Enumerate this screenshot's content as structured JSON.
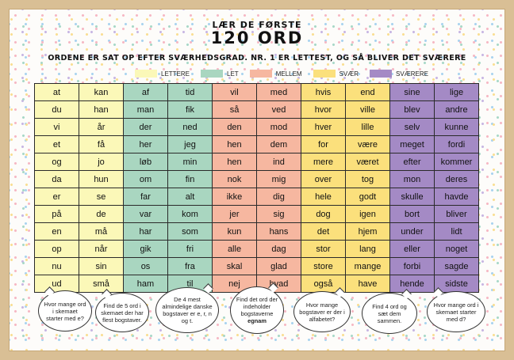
{
  "header": {
    "title_top": "LÆR DE FØRSTE",
    "title_main": "120 ORD",
    "subtitle": "ORDENE ER SAT OP EFTER SVÆRHEDSGRAD. NR. 1 ER LETTEST, OG SÅ BLIVER DET SVÆRERE"
  },
  "legend": [
    {
      "label": "LETTERE",
      "color": "#fbf8b8"
    },
    {
      "label": "LET",
      "color": "#a9d6c0"
    },
    {
      "label": "MELLEM",
      "color": "#f6b7a0"
    },
    {
      "label": "SVÆR",
      "color": "#fbe07c"
    },
    {
      "label": "SVÆRERE",
      "color": "#a48ac5"
    }
  ],
  "columns": [
    {
      "level": "LETTERE",
      "color": "#fbf8b8"
    },
    {
      "level": "LETTERE",
      "color": "#fbf8b8"
    },
    {
      "level": "LET",
      "color": "#a9d6c0"
    },
    {
      "level": "LET",
      "color": "#a9d6c0"
    },
    {
      "level": "MELLEM",
      "color": "#f6b7a0"
    },
    {
      "level": "MELLEM",
      "color": "#f6b7a0"
    },
    {
      "level": "SVÆR",
      "color": "#fbe07c"
    },
    {
      "level": "SVÆR",
      "color": "#fbe07c"
    },
    {
      "level": "SVÆRERE",
      "color": "#a48ac5"
    },
    {
      "level": "SVÆRERE",
      "color": "#a48ac5"
    }
  ],
  "rows": [
    [
      "at",
      "kan",
      "af",
      "tid",
      "vil",
      "med",
      "hvis",
      "end",
      "sine",
      "lige"
    ],
    [
      "du",
      "han",
      "man",
      "fik",
      "så",
      "ved",
      "hvor",
      "ville",
      "blev",
      "andre"
    ],
    [
      "vi",
      "år",
      "der",
      "ned",
      "den",
      "mod",
      "hver",
      "lille",
      "selv",
      "kunne"
    ],
    [
      "et",
      "få",
      "her",
      "jeg",
      "hen",
      "dem",
      "for",
      "være",
      "meget",
      "fordi"
    ],
    [
      "og",
      "jo",
      "løb",
      "min",
      "hen",
      "ind",
      "mere",
      "været",
      "efter",
      "kommer"
    ],
    [
      "da",
      "hun",
      "om",
      "fin",
      "nok",
      "mig",
      "over",
      "tog",
      "mon",
      "deres"
    ],
    [
      "er",
      "se",
      "far",
      "alt",
      "ikke",
      "dig",
      "hele",
      "godt",
      "skulle",
      "havde"
    ],
    [
      "på",
      "de",
      "var",
      "kom",
      "jer",
      "sig",
      "dog",
      "igen",
      "bort",
      "bliver"
    ],
    [
      "en",
      "må",
      "har",
      "som",
      "kun",
      "hans",
      "det",
      "hjem",
      "under",
      "lidt"
    ],
    [
      "op",
      "når",
      "gik",
      "fri",
      "alle",
      "dag",
      "stor",
      "lang",
      "eller",
      "noget"
    ],
    [
      "nu",
      "sin",
      "os",
      "fra",
      "skal",
      "glad",
      "store",
      "mange",
      "forbi",
      "sagde"
    ],
    [
      "ud",
      "små",
      "ham",
      "til",
      "nej",
      "hvad",
      "også",
      "have",
      "hende",
      "sidste"
    ]
  ],
  "bubbles": [
    {
      "text": "Hvor mange ord i skemaet starter med e?",
      "bold": ""
    },
    {
      "text": "Find de 5 ord i skemaet der har flest bogstaver.",
      "bold": ""
    },
    {
      "text": "De 4 mest almindelige danske bogstaver er e, r, n og t.",
      "bold": ""
    },
    {
      "text": "Find det ord der indeholder bogstaverne",
      "bold": "egnam"
    },
    {
      "text": "Hvor mange bogstaver er der i alfabetet?",
      "bold": ""
    },
    {
      "text": "Find 4 ord og sæt dem sammen.",
      "bold": ""
    },
    {
      "text": "Hvor mange ord i skemaet starter med d?",
      "bold": ""
    }
  ]
}
